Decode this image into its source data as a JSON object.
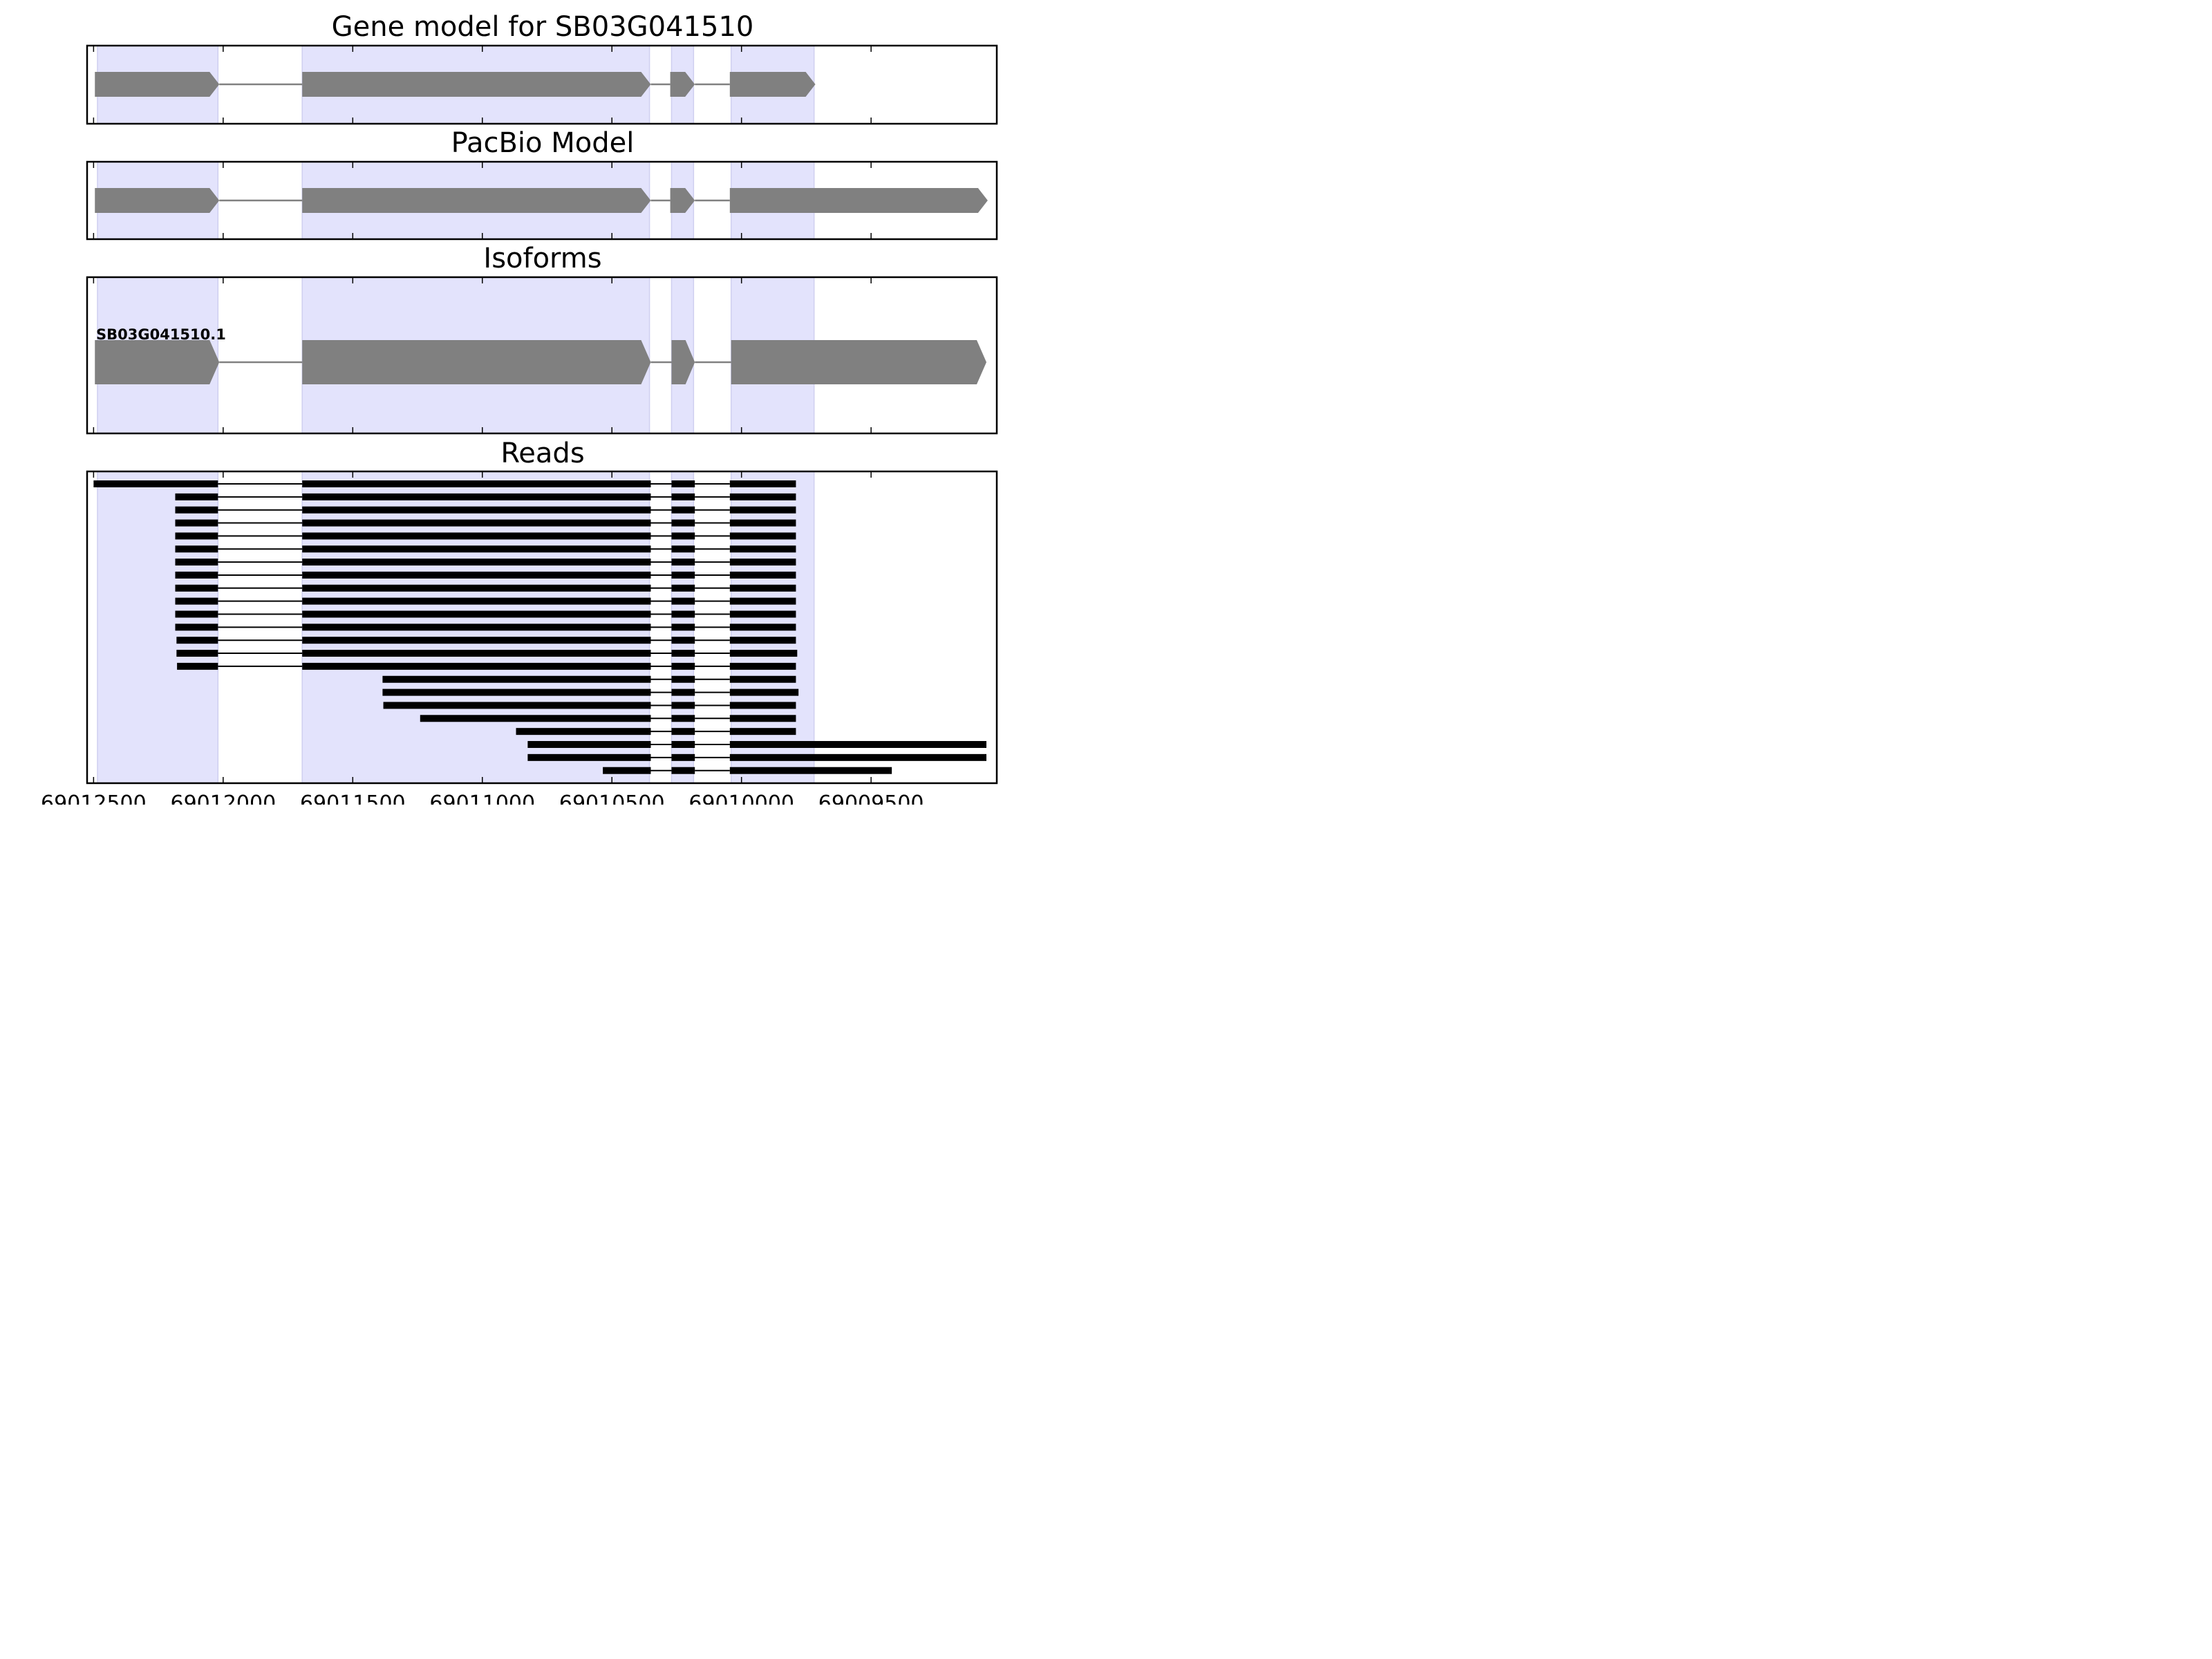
{
  "chart_data": {
    "type": "gene_structure",
    "x_axis": {
      "reversed": true,
      "ticks": [
        69012500,
        69012000,
        69011500,
        69011000,
        69010500,
        69010000,
        69009500
      ],
      "tick_labels": [
        "69012500",
        "69012000",
        "69011500",
        "69011000",
        "69010500",
        "69010000",
        "69009500"
      ],
      "range": [
        69012525,
        69009015
      ]
    },
    "exon_regions_shaded": [
      [
        69012485,
        69012020
      ],
      [
        69011695,
        69010355
      ],
      [
        69010270,
        69010185
      ],
      [
        69010040,
        69009720
      ]
    ],
    "colors": {
      "shade": "#e3e3fc",
      "shade_edge": "#cfcff0",
      "model": "#808080",
      "read": "#000000",
      "frame": "#000000"
    },
    "panels": [
      {
        "title": "Gene model for SB03G041510",
        "strand": "-",
        "exons": [
          [
            69012495,
            69012015
          ],
          [
            69011695,
            69010350
          ],
          [
            69010275,
            69010180
          ],
          [
            69010045,
            69009715
          ]
        ]
      },
      {
        "title": "PacBio Model",
        "strand": "-",
        "exons": [
          [
            69012495,
            69012015
          ],
          [
            69011695,
            69010350
          ],
          [
            69010275,
            69010180
          ],
          [
            69010045,
            69009050
          ]
        ]
      },
      {
        "title": "Isoforms",
        "isoform_label": "SB03G041510.1",
        "strand": "-",
        "exons": [
          [
            69012495,
            69012015
          ],
          [
            69011695,
            69010350
          ],
          [
            69010270,
            69010180
          ],
          [
            69010040,
            69009055
          ]
        ]
      }
    ],
    "reads_panel": {
      "title": "Reads",
      "reads": [
        [
          [
            69012500,
            69012020
          ],
          [
            69011695,
            69010350
          ],
          [
            69010270,
            69010180
          ],
          [
            69010045,
            69009790
          ]
        ],
        [
          [
            69012185,
            69012020
          ],
          [
            69011695,
            69010350
          ],
          [
            69010270,
            69010180
          ],
          [
            69010045,
            69009790
          ]
        ],
        [
          [
            69012185,
            69012020
          ],
          [
            69011695,
            69010350
          ],
          [
            69010270,
            69010180
          ],
          [
            69010045,
            69009790
          ]
        ],
        [
          [
            69012185,
            69012020
          ],
          [
            69011695,
            69010350
          ],
          [
            69010270,
            69010180
          ],
          [
            69010045,
            69009790
          ]
        ],
        [
          [
            69012185,
            69012020
          ],
          [
            69011695,
            69010350
          ],
          [
            69010270,
            69010180
          ],
          [
            69010045,
            69009790
          ]
        ],
        [
          [
            69012185,
            69012020
          ],
          [
            69011695,
            69010350
          ],
          [
            69010270,
            69010180
          ],
          [
            69010045,
            69009790
          ]
        ],
        [
          [
            69012185,
            69012020
          ],
          [
            69011695,
            69010350
          ],
          [
            69010270,
            69010180
          ],
          [
            69010045,
            69009790
          ]
        ],
        [
          [
            69012185,
            69012020
          ],
          [
            69011695,
            69010350
          ],
          [
            69010270,
            69010180
          ],
          [
            69010045,
            69009790
          ]
        ],
        [
          [
            69012185,
            69012020
          ],
          [
            69011695,
            69010350
          ],
          [
            69010270,
            69010180
          ],
          [
            69010045,
            69009790
          ]
        ],
        [
          [
            69012185,
            69012020
          ],
          [
            69011695,
            69010350
          ],
          [
            69010270,
            69010180
          ],
          [
            69010045,
            69009790
          ]
        ],
        [
          [
            69012185,
            69012020
          ],
          [
            69011695,
            69010350
          ],
          [
            69010270,
            69010180
          ],
          [
            69010045,
            69009790
          ]
        ],
        [
          [
            69012185,
            69012020
          ],
          [
            69011695,
            69010350
          ],
          [
            69010270,
            69010180
          ],
          [
            69010045,
            69009790
          ]
        ],
        [
          [
            69012180,
            69012020
          ],
          [
            69011695,
            69010350
          ],
          [
            69010270,
            69010180
          ],
          [
            69010045,
            69009790
          ]
        ],
        [
          [
            69012180,
            69012020
          ],
          [
            69011695,
            69010350
          ],
          [
            69010270,
            69010180
          ],
          [
            69010045,
            69009785
          ]
        ],
        [
          [
            69012178,
            69012020
          ],
          [
            69011695,
            69010350
          ],
          [
            69010270,
            69010180
          ],
          [
            69010045,
            69009790
          ]
        ],
        [
          [
            69011385,
            69010350
          ],
          [
            69010270,
            69010180
          ],
          [
            69010045,
            69009790
          ]
        ],
        [
          [
            69011385,
            69010350
          ],
          [
            69010270,
            69010180
          ],
          [
            69010045,
            69009780
          ]
        ],
        [
          [
            69011382,
            69010350
          ],
          [
            69010270,
            69010180
          ],
          [
            69010045,
            69009790
          ]
        ],
        [
          [
            69011240,
            69010350
          ],
          [
            69010270,
            69010180
          ],
          [
            69010045,
            69009790
          ]
        ],
        [
          [
            69010870,
            69010350
          ],
          [
            69010270,
            69010180
          ],
          [
            69010045,
            69009790
          ]
        ],
        [
          [
            69010825,
            69010350
          ],
          [
            69010270,
            69010180
          ],
          [
            69010045,
            69009055
          ]
        ],
        [
          [
            69010825,
            69010350
          ],
          [
            69010270,
            69010180
          ],
          [
            69010045,
            69009055
          ]
        ],
        [
          [
            69010535,
            69010350
          ],
          [
            69010270,
            69010180
          ],
          [
            69010045,
            69009420
          ]
        ]
      ]
    }
  }
}
